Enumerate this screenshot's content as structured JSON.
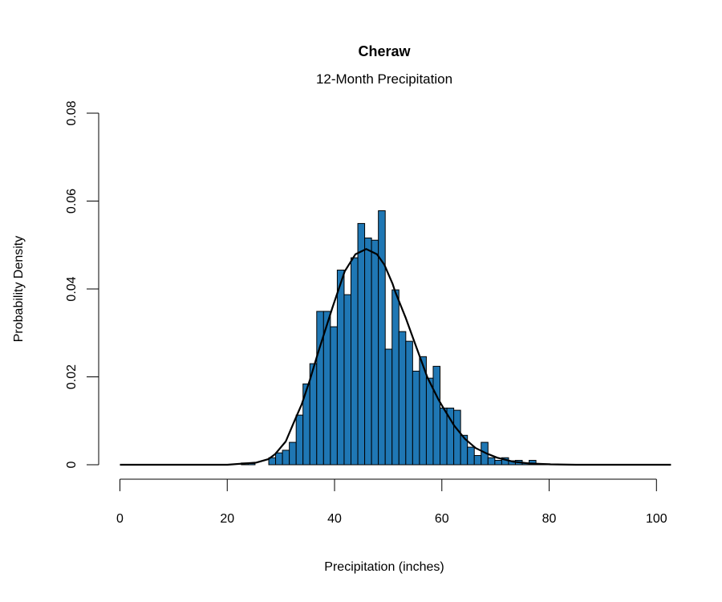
{
  "chart_data": {
    "type": "bar",
    "title": "Cheraw",
    "subtitle": "12-Month Precipitation",
    "xlabel": "Precipitation (inches)",
    "ylabel": "Probability Density",
    "xlim": [
      0,
      100
    ],
    "ylim": [
      0,
      0.08
    ],
    "x_ticks": [
      0,
      20,
      40,
      60,
      80,
      100
    ],
    "x_tick_labels": [
      "0",
      "20",
      "40",
      "60",
      "80",
      "100"
    ],
    "y_ticks": [
      0,
      0.02,
      0.04,
      0.06,
      0.08
    ],
    "y_tick_labels": [
      "0",
      "0.02",
      "0.04",
      "0.06",
      "0.08"
    ],
    "grid": false,
    "bar_color": "#1F77B4",
    "bar_border_color": "#000000",
    "histogram": {
      "bin_start": 22.63,
      "bin_width": 1.277,
      "densities": [
        0.0004,
        0.0003,
        0,
        0,
        0.0016,
        0.0027,
        0.0033,
        0.0051,
        0.0113,
        0.0184,
        0.023,
        0.0349,
        0.0349,
        0.0314,
        0.0443,
        0.0387,
        0.0471,
        0.0549,
        0.0516,
        0.0511,
        0.0578,
        0.0263,
        0.0398,
        0.0303,
        0.0281,
        0.0213,
        0.0246,
        0.0197,
        0.0224,
        0.0129,
        0.0129,
        0.0124,
        0.0067,
        0.004,
        0.0021,
        0.0051,
        0.0016,
        0.001,
        0.0016,
        0.0009,
        0.001,
        0.0004,
        0.001,
        0.0002,
        0.0002,
        0.0001
      ]
    },
    "density_curve": {
      "color": "#000000",
      "x": [
        0,
        20,
        25.4,
        27.7,
        28.9,
        30.9,
        32.4,
        33.9,
        35.4,
        36.9,
        39.6,
        41.9,
        43.9,
        45.9,
        47.9,
        49.3,
        50.8,
        51.3,
        53.3,
        55.3,
        57.3,
        59.3,
        60.3,
        62.3,
        64.3,
        66.3,
        68.3,
        70.3,
        73.3,
        76.3,
        80.3,
        85,
        102.7
      ],
      "y": [
        0,
        0,
        0.0005,
        0.0013,
        0.0024,
        0.0053,
        0.0096,
        0.0138,
        0.0193,
        0.0254,
        0.0357,
        0.044,
        0.0479,
        0.0491,
        0.0479,
        0.0455,
        0.0412,
        0.0394,
        0.0333,
        0.0266,
        0.0199,
        0.015,
        0.0129,
        0.0089,
        0.0059,
        0.0038,
        0.0026,
        0.0016,
        0.0007,
        0.0003,
        0.0001,
        0,
        0
      ]
    }
  }
}
